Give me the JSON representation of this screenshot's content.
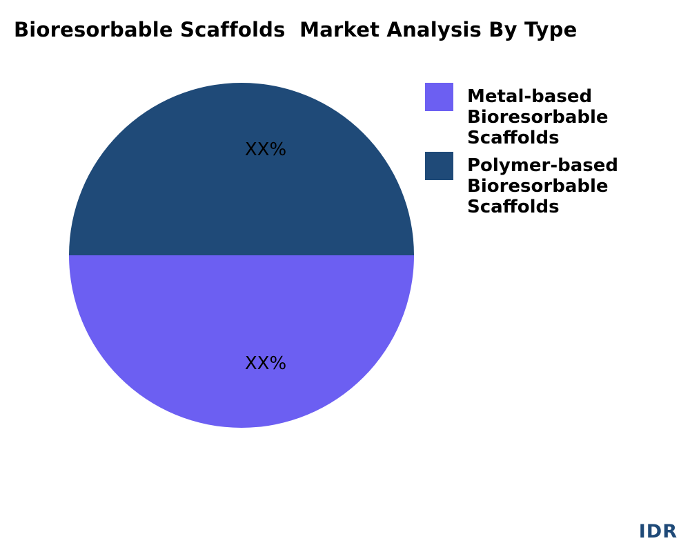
{
  "chart_data": {
    "type": "pie",
    "title": "Bioresorbable Scaffolds  Market Analysis By Type",
    "slices": [
      {
        "name": "Metal-based Bioresorbable Scaffolds",
        "value": 50,
        "label": "XX%",
        "color": "#6c5ff2"
      },
      {
        "name": "Polymer-based Bioresorbable Scaffolds",
        "value": 50,
        "label": "XX%",
        "color": "#1f4a78"
      }
    ],
    "legend_position": "right"
  },
  "brand": "IDR"
}
